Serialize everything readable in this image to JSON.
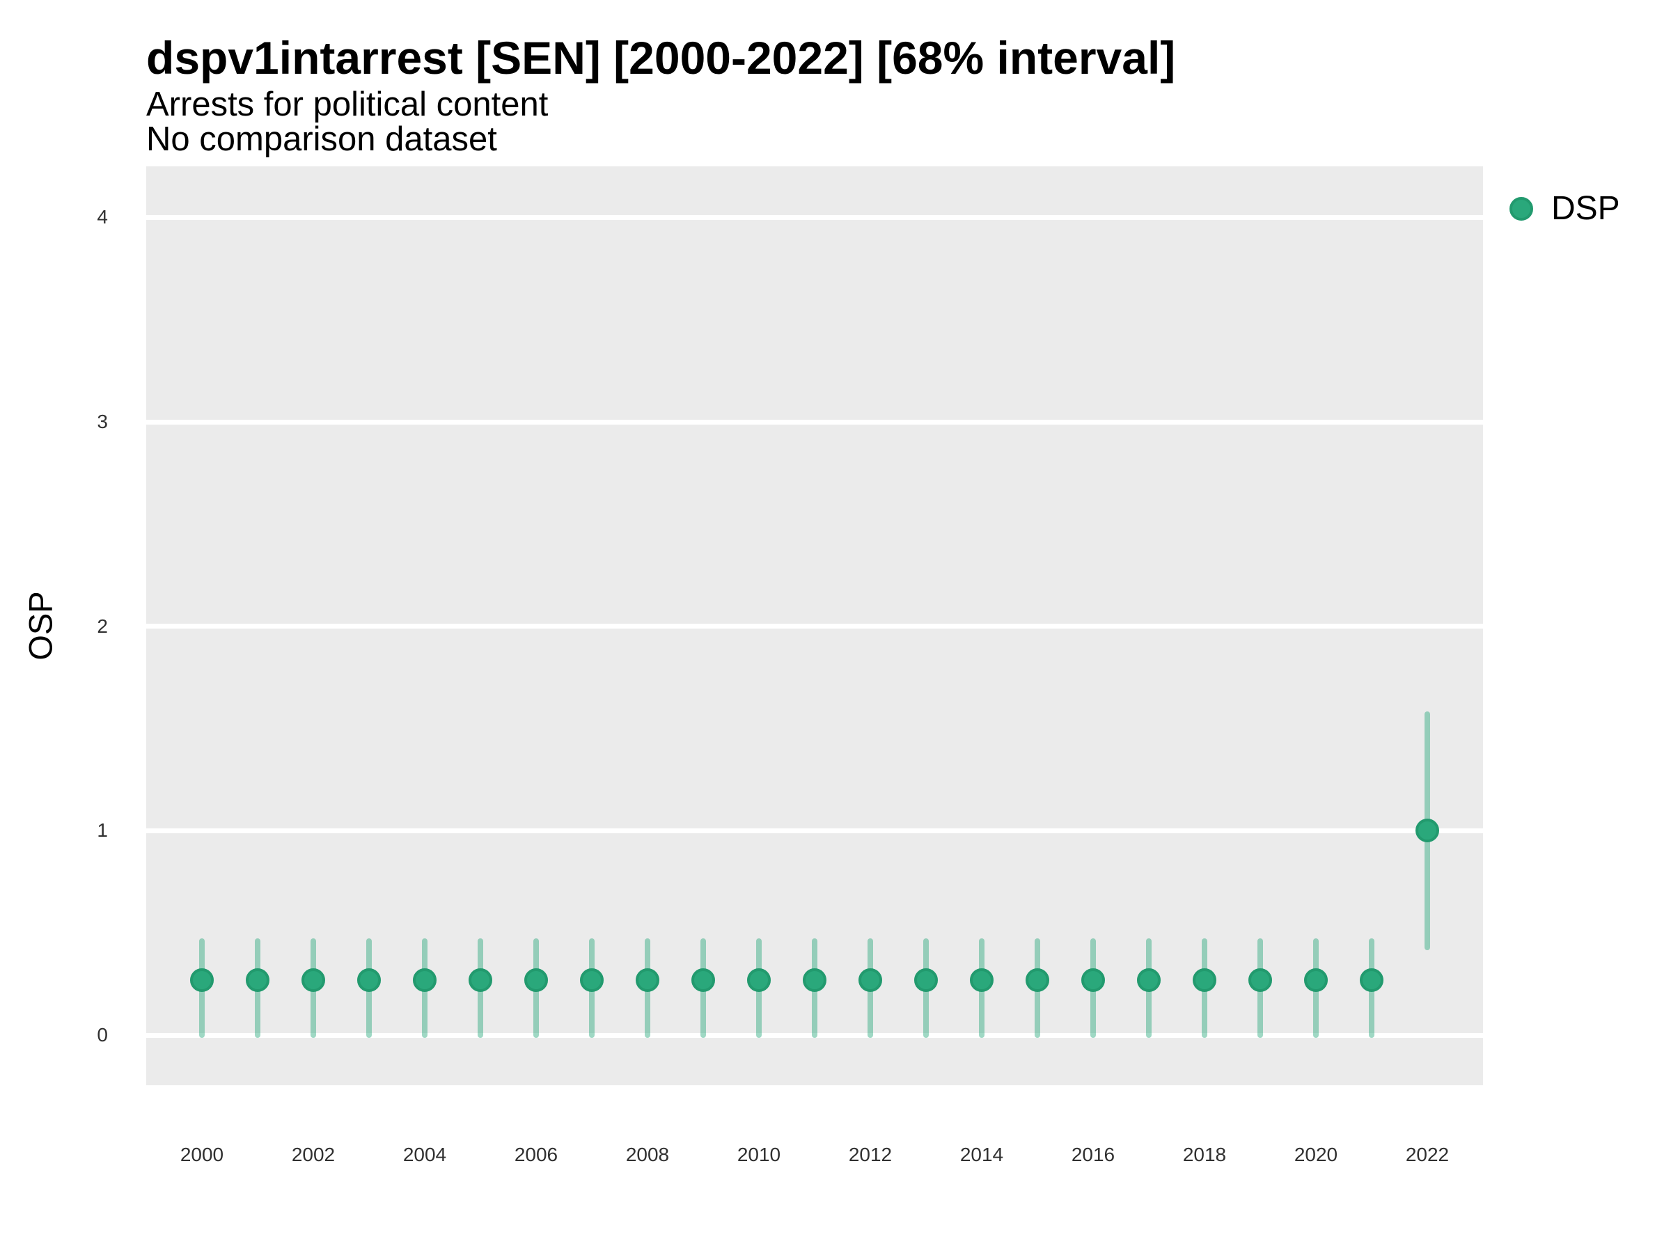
{
  "chart_data": {
    "type": "pointrange",
    "title": "dspv1intarrest [SEN] [2000-2022] [68% interval]",
    "subtitle": [
      "Arrests for political content",
      "No comparison dataset"
    ],
    "xlabel": "",
    "ylabel": "OSP",
    "interval_label": "68% interval",
    "xlim": [
      1999,
      2023
    ],
    "ylim": [
      -0.245,
      4.25
    ],
    "x_ticks": [
      2000,
      2002,
      2004,
      2006,
      2008,
      2010,
      2012,
      2014,
      2016,
      2018,
      2020,
      2022
    ],
    "y_ticks": [
      0,
      1,
      2,
      3,
      4
    ],
    "grid": "horizontal-major-only",
    "panel_bg": "#ebebeb",
    "grid_color": "#ffffff",
    "legend_position": "top-right",
    "series": [
      {
        "name": "DSP",
        "color": "#2aa87b",
        "marker_edge_color": "#229a6e",
        "range_color": "rgba(43,168,124,0.45)",
        "points": [
          {
            "x": 2000,
            "y": 0.27,
            "low": 0.0,
            "high": 0.46
          },
          {
            "x": 2001,
            "y": 0.27,
            "low": 0.0,
            "high": 0.46
          },
          {
            "x": 2002,
            "y": 0.27,
            "low": 0.0,
            "high": 0.46
          },
          {
            "x": 2003,
            "y": 0.27,
            "low": 0.0,
            "high": 0.46
          },
          {
            "x": 2004,
            "y": 0.27,
            "low": 0.0,
            "high": 0.46
          },
          {
            "x": 2005,
            "y": 0.27,
            "low": 0.0,
            "high": 0.46
          },
          {
            "x": 2006,
            "y": 0.27,
            "low": 0.0,
            "high": 0.46
          },
          {
            "x": 2007,
            "y": 0.27,
            "low": 0.0,
            "high": 0.46
          },
          {
            "x": 2008,
            "y": 0.27,
            "low": 0.0,
            "high": 0.46
          },
          {
            "x": 2009,
            "y": 0.27,
            "low": 0.0,
            "high": 0.46
          },
          {
            "x": 2010,
            "y": 0.27,
            "low": 0.0,
            "high": 0.46
          },
          {
            "x": 2011,
            "y": 0.27,
            "low": 0.0,
            "high": 0.46
          },
          {
            "x": 2012,
            "y": 0.27,
            "low": 0.0,
            "high": 0.46
          },
          {
            "x": 2013,
            "y": 0.27,
            "low": 0.0,
            "high": 0.46
          },
          {
            "x": 2014,
            "y": 0.27,
            "low": 0.0,
            "high": 0.46
          },
          {
            "x": 2015,
            "y": 0.27,
            "low": 0.0,
            "high": 0.46
          },
          {
            "x": 2016,
            "y": 0.27,
            "low": 0.0,
            "high": 0.46
          },
          {
            "x": 2017,
            "y": 0.27,
            "low": 0.0,
            "high": 0.46
          },
          {
            "x": 2018,
            "y": 0.27,
            "low": 0.0,
            "high": 0.46
          },
          {
            "x": 2019,
            "y": 0.27,
            "low": 0.0,
            "high": 0.46
          },
          {
            "x": 2020,
            "y": 0.27,
            "low": 0.0,
            "high": 0.46
          },
          {
            "x": 2021,
            "y": 0.27,
            "low": 0.0,
            "high": 0.46
          },
          {
            "x": 2022,
            "y": 1.0,
            "low": 0.43,
            "high": 1.57
          }
        ]
      }
    ]
  }
}
